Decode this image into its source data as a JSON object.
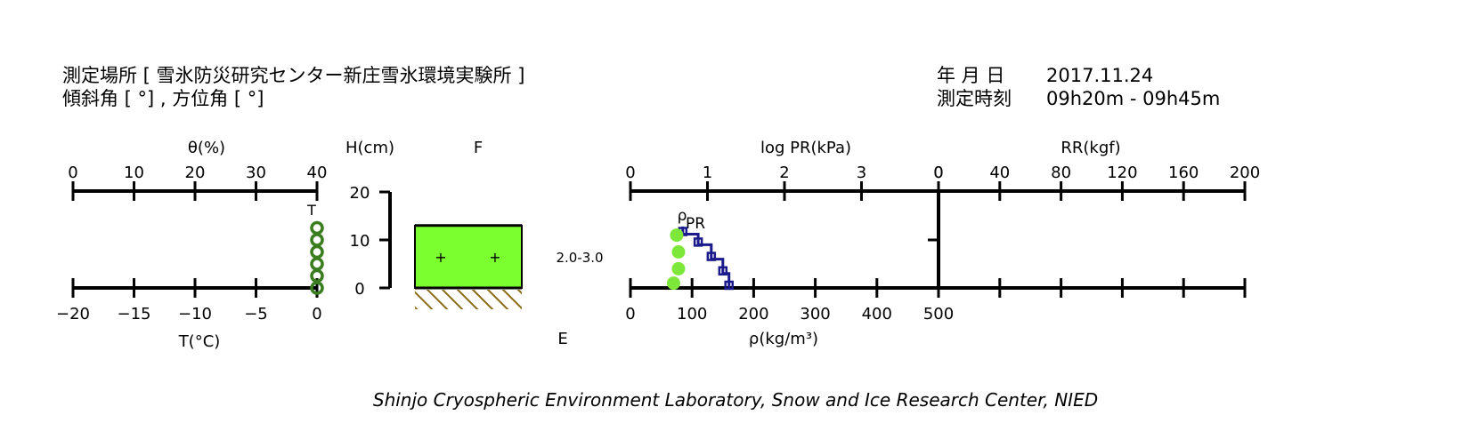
{
  "header": {
    "site_line": "測定場所 [ 雪氷防災研究センター新庄雪氷環境実験所 ]",
    "slope_line": "傾斜角 [ °] , 方位角 [ °]",
    "date_label": "年 月 日",
    "date_value": "2017.11.24",
    "time_label": "測定時刻",
    "time_value": "09h20m - 09h45m"
  },
  "footer": "Shinjo Cryospheric Environment Laboratory, Snow and Ice Research Center, NIED",
  "colors": {
    "theta": "#3a7d1e",
    "density": "#7ee83a",
    "layer_fill": "#7cff2e",
    "pr": "#1a1a8c",
    "ground_hatch": "#8a6d16"
  },
  "chart_data": [
    {
      "type": "scatter",
      "name": "theta-T panel",
      "title_top": "θ(%)",
      "title_bottom": "T(°C)",
      "top_ticks": [
        "0",
        "10",
        "20",
        "30",
        "40"
      ],
      "top_range": [
        0,
        40
      ],
      "bottom_ticks": [
        "−20",
        "−15",
        "−10",
        "−5",
        "0"
      ],
      "bottom_range": [
        -20,
        0
      ],
      "ylim": [
        0,
        20
      ],
      "temperature_marker_label": "T",
      "series": [
        {
          "name": "T",
          "points": [
            [
              0,
              0
            ],
            [
              0,
              2.5
            ],
            [
              0,
              5
            ],
            [
              0,
              7.5
            ],
            [
              0,
              10
            ],
            [
              0,
              12.5
            ]
          ]
        }
      ]
    },
    {
      "type": "table",
      "name": "snow layer column",
      "height_label": "H(cm)",
      "height_ticks": [
        "0",
        "10",
        "20"
      ],
      "ylim": [
        0,
        20
      ],
      "grain_label": "F",
      "hardness_label": "E",
      "layers": [
        {
          "bottom": 0,
          "top": 13,
          "grain_symbols": [
            "+",
            "+"
          ],
          "grain_size": "2.0-3.0"
        }
      ]
    },
    {
      "type": "line",
      "name": "density and pressure panel",
      "top_label": "log PR(kPa)",
      "top_ticks": [
        "0",
        "1",
        "2",
        "3",
        "0"
      ],
      "pr_range": [
        0,
        4
      ],
      "bottom_label": "ρ(kg/m³)",
      "bottom_ticks": [
        "0",
        "100",
        "200",
        "300",
        "400",
        "500"
      ],
      "density_range": [
        0,
        500
      ],
      "ylim": [
        0,
        20
      ],
      "marker_labels": [
        "ρ",
        "PR"
      ],
      "density_points": [
        [
          70,
          1
        ],
        [
          78,
          4
        ],
        [
          78,
          7.5
        ],
        [
          75,
          11
        ]
      ],
      "pr_steps": [
        [
          1.28,
          0
        ],
        [
          1.28,
          3
        ],
        [
          1.2,
          3
        ],
        [
          1.2,
          6
        ],
        [
          1.05,
          6
        ],
        [
          1.05,
          9
        ],
        [
          0.88,
          9
        ],
        [
          0.88,
          11.2
        ],
        [
          0.68,
          11.2
        ],
        [
          0.68,
          12.8
        ]
      ]
    },
    {
      "type": "line",
      "name": "ram resistance panel",
      "top_label": "RR(kgf)",
      "top_ticks": [
        "40",
        "80",
        "120",
        "160",
        "200"
      ],
      "x_range": [
        0,
        200
      ],
      "ylim": [
        0,
        20
      ],
      "series": [
        {
          "name": "RR",
          "points": [
            [
              0,
              0
            ],
            [
              0,
              20
            ]
          ]
        }
      ]
    }
  ]
}
